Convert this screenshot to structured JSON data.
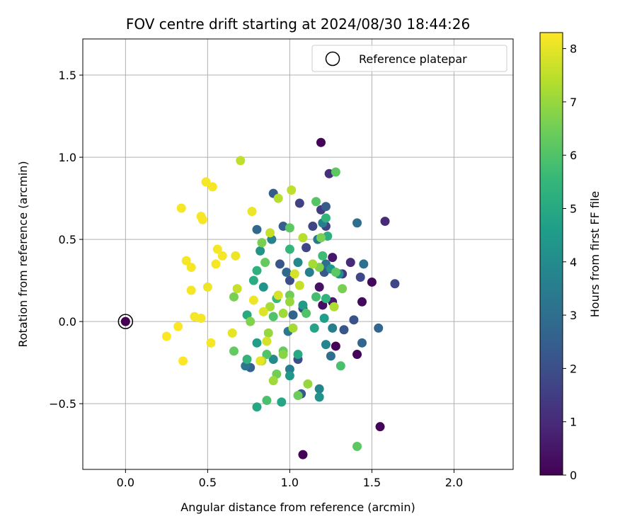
{
  "chart_data": {
    "type": "scatter",
    "title": "FOV centre drift starting at 2024/08/30 18:44:26",
    "xlabel": "Angular distance from reference (arcmin)",
    "ylabel": "Rotation from reference (arcmin)",
    "xlim": [
      -0.26,
      2.36
    ],
    "ylim": [
      -0.9,
      1.72
    ],
    "xticks": [
      0.0,
      0.5,
      1.0,
      1.5,
      2.0
    ],
    "xtick_labels": [
      "0.0",
      "0.5",
      "1.0",
      "1.5",
      "2.0"
    ],
    "yticks": [
      -0.5,
      0.0,
      0.5,
      1.0,
      1.5
    ],
    "ytick_labels": [
      "−0.5",
      "0.0",
      "0.5",
      "1.0",
      "1.5"
    ],
    "grid": true,
    "legend": {
      "position": "top-right",
      "entries": [
        "Reference platepar"
      ]
    },
    "reference_point": {
      "x": 0.0,
      "y": 0.0,
      "marker": "open-circle"
    },
    "colorbar": {
      "label": "Hours from first FF file",
      "range": [
        0,
        8.3
      ],
      "ticks": [
        0,
        1,
        2,
        3,
        4,
        5,
        6,
        7,
        8
      ],
      "tick_labels": [
        "0",
        "1",
        "2",
        "3",
        "4",
        "5",
        "6",
        "7",
        "8"
      ],
      "colormap": "viridis"
    },
    "points": [
      {
        "x": 0.0,
        "y": 0.0,
        "c": 0.0
      },
      {
        "x": 1.19,
        "y": 1.09,
        "c": 0.1
      },
      {
        "x": 1.08,
        "y": -0.81,
        "c": 0.1
      },
      {
        "x": 1.55,
        "y": -0.64,
        "c": 0.1
      },
      {
        "x": 1.28,
        "y": -0.15,
        "c": 0.1
      },
      {
        "x": 1.41,
        "y": -0.2,
        "c": 0.1
      },
      {
        "x": 1.5,
        "y": 0.24,
        "c": 0.2
      },
      {
        "x": 1.44,
        "y": 0.12,
        "c": 0.2
      },
      {
        "x": 1.2,
        "y": 0.1,
        "c": 0.3
      },
      {
        "x": 1.18,
        "y": 0.21,
        "c": 0.4
      },
      {
        "x": 1.26,
        "y": 0.39,
        "c": 0.5
      },
      {
        "x": 1.26,
        "y": 0.12,
        "c": 0.6
      },
      {
        "x": 1.58,
        "y": 0.61,
        "c": 1.0
      },
      {
        "x": 1.24,
        "y": 0.9,
        "c": 1.1
      },
      {
        "x": 1.37,
        "y": 0.36,
        "c": 1.0
      },
      {
        "x": 1.32,
        "y": 0.29,
        "c": 1.3
      },
      {
        "x": 1.19,
        "y": 0.68,
        "c": 1.4
      },
      {
        "x": 1.06,
        "y": 0.72,
        "c": 1.6
      },
      {
        "x": 1.64,
        "y": 0.23,
        "c": 1.8
      },
      {
        "x": 1.43,
        "y": 0.27,
        "c": 1.8
      },
      {
        "x": 1.22,
        "y": 0.58,
        "c": 1.6
      },
      {
        "x": 1.14,
        "y": 0.58,
        "c": 1.7
      },
      {
        "x": 1.1,
        "y": 0.45,
        "c": 1.7
      },
      {
        "x": 1.08,
        "y": 0.08,
        "c": 1.9
      },
      {
        "x": 1.0,
        "y": 0.25,
        "c": 2.0
      },
      {
        "x": 1.39,
        "y": 0.01,
        "c": 2.1
      },
      {
        "x": 1.33,
        "y": -0.05,
        "c": 2.2
      },
      {
        "x": 1.05,
        "y": -0.23,
        "c": 2.0
      },
      {
        "x": 0.94,
        "y": 0.35,
        "c": 2.2
      },
      {
        "x": 1.07,
        "y": -0.44,
        "c": 2.3
      },
      {
        "x": 1.22,
        "y": 0.7,
        "c": 2.4
      },
      {
        "x": 1.21,
        "y": 0.3,
        "c": 2.3
      },
      {
        "x": 0.96,
        "y": 0.58,
        "c": 2.5
      },
      {
        "x": 0.9,
        "y": 0.78,
        "c": 2.4
      },
      {
        "x": 0.76,
        "y": -0.28,
        "c": 2.6
      },
      {
        "x": 1.54,
        "y": -0.04,
        "c": 2.7
      },
      {
        "x": 1.44,
        "y": -0.13,
        "c": 2.7
      },
      {
        "x": 1.02,
        "y": 0.04,
        "c": 2.6
      },
      {
        "x": 0.98,
        "y": 0.3,
        "c": 2.8
      },
      {
        "x": 0.8,
        "y": 0.56,
        "c": 2.8
      },
      {
        "x": 1.41,
        "y": 0.6,
        "c": 3.0
      },
      {
        "x": 1.45,
        "y": 0.35,
        "c": 3.1
      },
      {
        "x": 1.25,
        "y": -0.21,
        "c": 3.0
      },
      {
        "x": 1.22,
        "y": 0.35,
        "c": 3.1
      },
      {
        "x": 1.17,
        "y": 0.5,
        "c": 3.3
      },
      {
        "x": 0.73,
        "y": -0.27,
        "c": 3.3
      },
      {
        "x": 0.99,
        "y": -0.06,
        "c": 3.4
      },
      {
        "x": 1.0,
        "y": -0.29,
        "c": 3.5
      },
      {
        "x": 1.2,
        "y": 0.6,
        "c": 3.6
      },
      {
        "x": 1.12,
        "y": 0.3,
        "c": 3.6
      },
      {
        "x": 1.26,
        "y": -0.04,
        "c": 3.6
      },
      {
        "x": 1.22,
        "y": -0.14,
        "c": 3.8
      },
      {
        "x": 1.18,
        "y": -0.41,
        "c": 3.8
      },
      {
        "x": 1.05,
        "y": 0.36,
        "c": 3.9
      },
      {
        "x": 0.89,
        "y": 0.5,
        "c": 3.7
      },
      {
        "x": 0.9,
        "y": -0.23,
        "c": 4.0
      },
      {
        "x": 1.3,
        "y": 0.29,
        "c": 4.0
      },
      {
        "x": 1.18,
        "y": -0.46,
        "c": 4.2
      },
      {
        "x": 1.25,
        "y": 0.32,
        "c": 4.3
      },
      {
        "x": 0.82,
        "y": 0.43,
        "c": 4.2
      },
      {
        "x": 0.84,
        "y": 0.21,
        "c": 4.3
      },
      {
        "x": 1.0,
        "y": -0.33,
        "c": 4.4
      },
      {
        "x": 1.08,
        "y": 0.1,
        "c": 4.5
      },
      {
        "x": 1.21,
        "y": 0.02,
        "c": 4.6
      },
      {
        "x": 0.8,
        "y": -0.13,
        "c": 4.6
      },
      {
        "x": 1.15,
        "y": -0.04,
        "c": 4.8
      },
      {
        "x": 0.95,
        "y": -0.49,
        "c": 4.9
      },
      {
        "x": 0.8,
        "y": -0.52,
        "c": 4.9
      },
      {
        "x": 1.05,
        "y": -0.2,
        "c": 5.0
      },
      {
        "x": 0.74,
        "y": 0.04,
        "c": 5.0
      },
      {
        "x": 0.78,
        "y": 0.25,
        "c": 5.1
      },
      {
        "x": 1.23,
        "y": 0.52,
        "c": 5.2
      },
      {
        "x": 1.22,
        "y": 0.63,
        "c": 5.4
      },
      {
        "x": 1.22,
        "y": 0.14,
        "c": 5.4
      },
      {
        "x": 0.8,
        "y": 0.31,
        "c": 5.3
      },
      {
        "x": 0.74,
        "y": -0.23,
        "c": 5.4
      },
      {
        "x": 1.0,
        "y": 0.44,
        "c": 5.5
      },
      {
        "x": 0.92,
        "y": 0.14,
        "c": 5.6
      },
      {
        "x": 1.2,
        "y": 0.4,
        "c": 5.7
      },
      {
        "x": 1.16,
        "y": 0.15,
        "c": 5.8
      },
      {
        "x": 1.31,
        "y": -0.27,
        "c": 5.9
      },
      {
        "x": 0.86,
        "y": -0.48,
        "c": 5.9
      },
      {
        "x": 0.86,
        "y": -0.2,
        "c": 6.0
      },
      {
        "x": 0.9,
        "y": 0.03,
        "c": 6.0
      },
      {
        "x": 1.1,
        "y": 0.05,
        "c": 6.0
      },
      {
        "x": 1.16,
        "y": 0.73,
        "c": 6.1
      },
      {
        "x": 1.28,
        "y": 0.91,
        "c": 6.2
      },
      {
        "x": 1.41,
        "y": -0.76,
        "c": 6.2
      },
      {
        "x": 1.0,
        "y": 0.57,
        "c": 6.2
      },
      {
        "x": 0.85,
        "y": 0.36,
        "c": 6.3
      },
      {
        "x": 0.96,
        "y": -0.18,
        "c": 6.3
      },
      {
        "x": 1.28,
        "y": 0.3,
        "c": 6.2
      },
      {
        "x": 0.66,
        "y": -0.18,
        "c": 6.3
      },
      {
        "x": 1.05,
        "y": -0.45,
        "c": 6.4
      },
      {
        "x": 0.92,
        "y": -0.32,
        "c": 6.5
      },
      {
        "x": 1.0,
        "y": 0.16,
        "c": 6.5
      },
      {
        "x": 1.19,
        "y": 0.51,
        "c": 6.6
      },
      {
        "x": 1.32,
        "y": 0.2,
        "c": 6.6
      },
      {
        "x": 0.66,
        "y": 0.15,
        "c": 6.6
      },
      {
        "x": 0.76,
        "y": 0.0,
        "c": 6.7
      },
      {
        "x": 0.83,
        "y": 0.48,
        "c": 6.6
      },
      {
        "x": 0.96,
        "y": -0.2,
        "c": 6.8
      },
      {
        "x": 1.18,
        "y": 0.33,
        "c": 6.7
      },
      {
        "x": 1.11,
        "y": -0.38,
        "c": 7.0
      },
      {
        "x": 1.0,
        "y": 0.12,
        "c": 7.0
      },
      {
        "x": 0.87,
        "y": -0.07,
        "c": 7.0
      },
      {
        "x": 0.96,
        "y": 0.05,
        "c": 7.1
      },
      {
        "x": 0.9,
        "y": -0.36,
        "c": 7.1
      },
      {
        "x": 1.02,
        "y": -0.04,
        "c": 7.2
      },
      {
        "x": 0.88,
        "y": 0.09,
        "c": 7.2
      },
      {
        "x": 1.14,
        "y": 0.35,
        "c": 7.2
      },
      {
        "x": 0.83,
        "y": -0.24,
        "c": 7.3
      },
      {
        "x": 1.27,
        "y": 0.09,
        "c": 7.3
      },
      {
        "x": 0.93,
        "y": 0.75,
        "c": 7.4
      },
      {
        "x": 1.01,
        "y": 0.8,
        "c": 7.5
      },
      {
        "x": 0.7,
        "y": 0.98,
        "c": 7.5
      },
      {
        "x": 1.08,
        "y": 0.51,
        "c": 7.4
      },
      {
        "x": 0.88,
        "y": 0.54,
        "c": 7.6
      },
      {
        "x": 0.68,
        "y": 0.2,
        "c": 7.6
      },
      {
        "x": 1.06,
        "y": 0.22,
        "c": 7.6
      },
      {
        "x": 1.03,
        "y": 0.29,
        "c": 7.8
      },
      {
        "x": 0.86,
        "y": -0.12,
        "c": 7.8
      },
      {
        "x": 0.84,
        "y": 0.06,
        "c": 7.9
      },
      {
        "x": 0.93,
        "y": 0.16,
        "c": 7.8
      },
      {
        "x": 0.65,
        "y": -0.07,
        "c": 8.0
      },
      {
        "x": 0.77,
        "y": 0.67,
        "c": 8.1
      },
      {
        "x": 0.78,
        "y": 0.13,
        "c": 8.1
      },
      {
        "x": 0.82,
        "y": -0.24,
        "c": 8.0
      },
      {
        "x": 0.67,
        "y": 0.4,
        "c": 8.1
      },
      {
        "x": 0.59,
        "y": 0.4,
        "c": 8.2
      },
      {
        "x": 0.56,
        "y": 0.44,
        "c": 8.2
      },
      {
        "x": 0.55,
        "y": 0.35,
        "c": 8.2
      },
      {
        "x": 0.5,
        "y": 0.21,
        "c": 8.1
      },
      {
        "x": 0.52,
        "y": -0.13,
        "c": 8.2
      },
      {
        "x": 0.46,
        "y": 0.02,
        "c": 8.2
      },
      {
        "x": 0.42,
        "y": 0.03,
        "c": 8.2
      },
      {
        "x": 0.47,
        "y": 0.62,
        "c": 8.2
      },
      {
        "x": 0.46,
        "y": 0.64,
        "c": 8.2
      },
      {
        "x": 0.49,
        "y": 0.85,
        "c": 8.2
      },
      {
        "x": 0.53,
        "y": 0.82,
        "c": 8.2
      },
      {
        "x": 0.34,
        "y": 0.69,
        "c": 8.2
      },
      {
        "x": 0.37,
        "y": 0.37,
        "c": 8.2
      },
      {
        "x": 0.4,
        "y": 0.33,
        "c": 8.2
      },
      {
        "x": 0.4,
        "y": 0.19,
        "c": 8.2
      },
      {
        "x": 0.32,
        "y": -0.03,
        "c": 8.3
      },
      {
        "x": 0.25,
        "y": -0.09,
        "c": 8.3
      },
      {
        "x": 0.35,
        "y": -0.24,
        "c": 8.3
      }
    ]
  }
}
